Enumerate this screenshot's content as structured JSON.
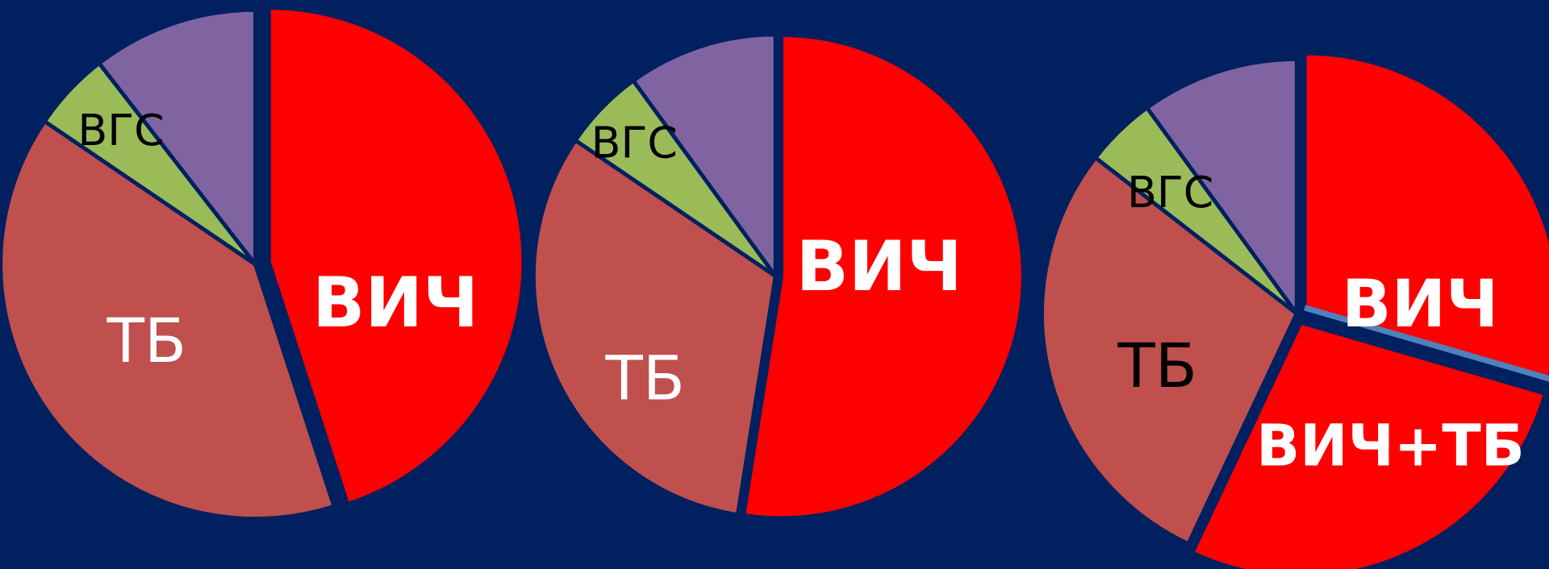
{
  "chart_data": [
    {
      "type": "pie",
      "categories": [
        "ВИЧ",
        "ТБ",
        "ВГС",
        null
      ],
      "values": [
        45,
        39.5,
        5,
        10.5
      ],
      "colors": [
        "#ff0000",
        "#c0504d",
        "#9bbb59",
        "#8064a2"
      ]
    },
    {
      "type": "pie",
      "categories": [
        "ВИЧ",
        "ТБ",
        "ВГС",
        null
      ],
      "values": [
        52.5,
        32,
        5.5,
        10
      ],
      "colors": [
        "#ff0000",
        "#c0504d",
        "#9bbb59",
        "#8064a2"
      ]
    },
    {
      "type": "pie",
      "categories": [
        "ВИЧ",
        "ВИЧ+ТБ",
        "ТБ",
        "ВГС",
        null
      ],
      "values": [
        29.5,
        27.5,
        28.5,
        4.5,
        10
      ],
      "colors": [
        "#ff0000",
        "#ff0000",
        "#c0504d",
        "#9bbb59",
        "#8064a2"
      ]
    }
  ]
}
